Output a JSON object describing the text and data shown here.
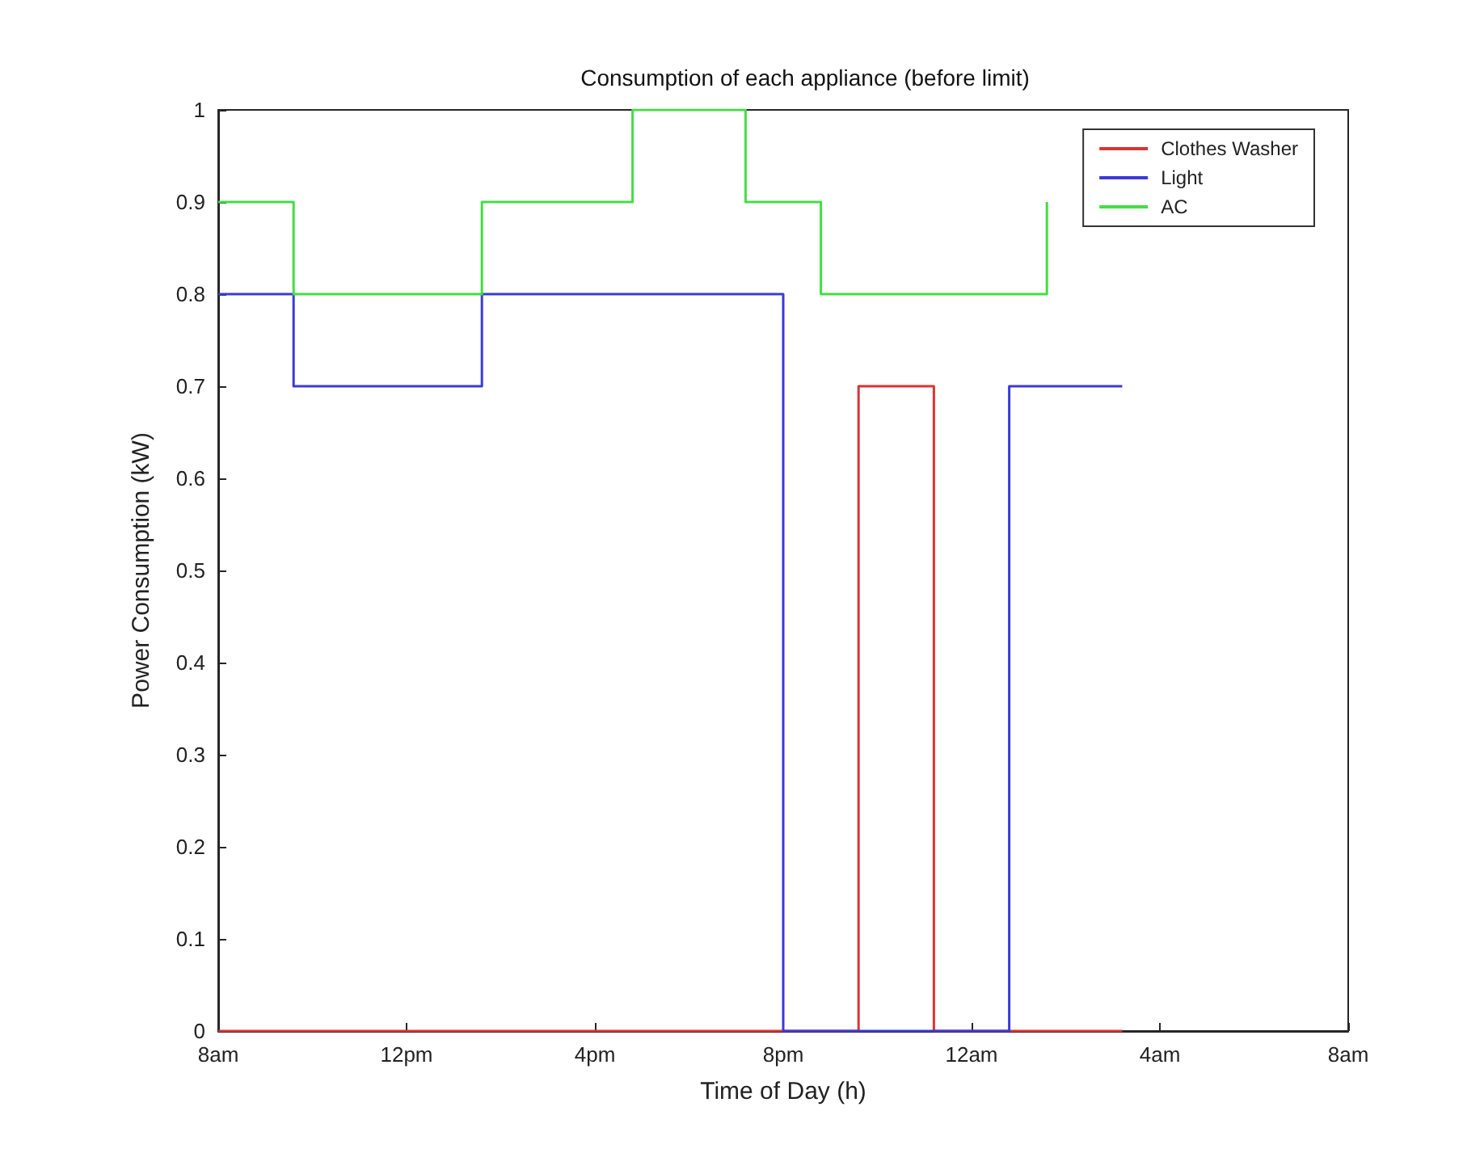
{
  "chart_data": {
    "type": "step",
    "title": "Consumption of each appliance (before limit)",
    "xlabel": "Time of Day (h)",
    "ylabel": "Power Consumption (kW)",
    "xlim": [
      "--01-01T08:00",
      "--01-02T08:00"
    ],
    "xticks": [
      {
        "value": "--01-01T08:00",
        "label": "8am"
      },
      {
        "value": "--01-01T12:00",
        "label": "12pm"
      },
      {
        "value": "--01-01T16:00",
        "label": "4pm"
      },
      {
        "value": "--01-01T20:00",
        "label": "8pm"
      },
      {
        "value": "--01-02T00:00",
        "label": "12am"
      },
      {
        "value": "--01-02T04:00",
        "label": "4am"
      },
      {
        "value": "--01-02T08:00",
        "label": "8am"
      }
    ],
    "ylim": [
      0,
      1
    ],
    "yticks": [
      0,
      0.1,
      0.2,
      0.3,
      0.4,
      0.5,
      0.6,
      0.7,
      0.8,
      0.9,
      1
    ],
    "series": [
      {
        "name": "Clothes Washer",
        "color": "#dd3333",
        "x": [
          "--01-01T08:00",
          "--01-01T21:36",
          "--01-01T23:12",
          "--01-02T03:12"
        ],
        "values": [
          0,
          0.7,
          0,
          0
        ]
      },
      {
        "name": "Light",
        "color": "#3b3bd6",
        "x": [
          "--01-01T08:00",
          "--01-01T09:36",
          "--01-01T13:36",
          "--01-01T20:00",
          "--01-02T00:48",
          "--01-02T03:12"
        ],
        "values": [
          0.8,
          0.7,
          0.8,
          0,
          0.7,
          0.7
        ]
      },
      {
        "name": "AC",
        "color": "#44dd44",
        "x": [
          "--01-01T08:00",
          "--01-01T09:36",
          "--01-01T13:36",
          "--01-01T16:48",
          "--01-01T19:12",
          "--01-01T20:48",
          "--01-02T01:36"
        ],
        "values": [
          0.9,
          0.8,
          0.9,
          1,
          0.9,
          0.8,
          0.9
        ]
      }
    ],
    "grid": false,
    "legend": "top right",
    "marker": "none",
    "line_style": "solid"
  }
}
